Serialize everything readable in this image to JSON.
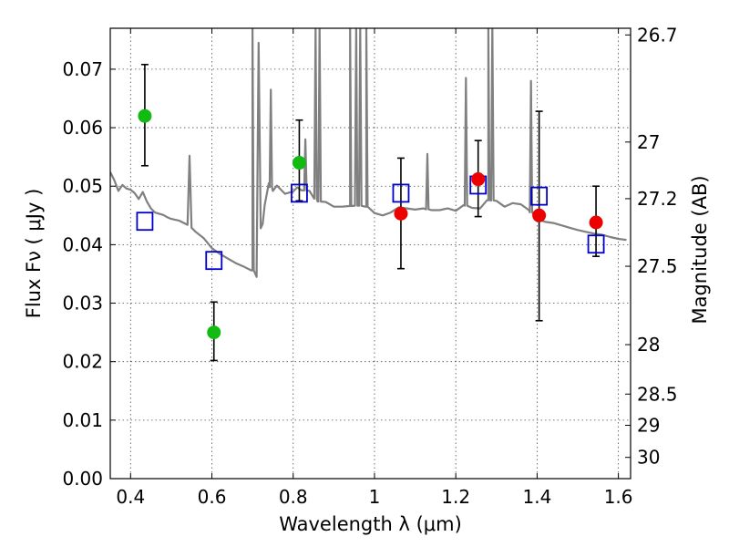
{
  "chart_data": {
    "type": "scatter",
    "title": "",
    "xlabel": "Wavelength  λ (μm)",
    "ylabel": "Flux  Fν  ( μJy )",
    "y2label": "Magnitude (AB)",
    "xlim": [
      0.35,
      1.63
    ],
    "ylim": [
      0.0,
      0.077
    ],
    "grid": true,
    "x_ticks": [
      0.4,
      0.6,
      0.8,
      1.0,
      1.2,
      1.4,
      1.6
    ],
    "x_tick_labels": [
      "0.4",
      "0.6",
      "0.8",
      "1",
      "1.2",
      "1.4",
      "1.6"
    ],
    "y_ticks": [
      0.0,
      0.01,
      0.02,
      0.03,
      0.04,
      0.05,
      0.06,
      0.07
    ],
    "y_tick_labels": [
      "0.00",
      "0.01",
      "0.02",
      "0.03",
      "0.04",
      "0.05",
      "0.06",
      "0.07"
    ],
    "y2_ticks": [
      26.7,
      27,
      27.2,
      27.5,
      28,
      28.5,
      29,
      30
    ],
    "y2_tick_labels": [
      "26.7",
      "27",
      "27.2",
      "27.5",
      "28",
      "28.5",
      "29",
      "30"
    ],
    "colors": {
      "green": "#11bb11",
      "red": "#ee0000",
      "square": "#0000cc",
      "model": "#808080",
      "errorbar": "#000000"
    },
    "series": [
      {
        "marker": "circle",
        "color": "#11bb11",
        "x": [
          0.435,
          0.605,
          0.815
        ],
        "y": [
          0.062,
          0.025,
          0.054
        ],
        "yerr_low": [
          0.0535,
          0.0202,
          0.0475
        ],
        "yerr_high": [
          0.0708,
          0.0302,
          0.0613
        ]
      },
      {
        "marker": "circle",
        "color": "#ee0000",
        "x": [
          1.065,
          1.255,
          1.405,
          1.545
        ],
        "y": [
          0.0453,
          0.0512,
          0.045,
          0.0438
        ],
        "yerr_low": [
          0.0359,
          0.0448,
          0.027,
          0.038
        ],
        "yerr_high": [
          0.0548,
          0.0578,
          0.0628,
          0.05
        ]
      },
      {
        "marker": "square",
        "color": "#0000cc",
        "x": [
          0.435,
          0.605,
          0.815,
          1.065,
          1.255,
          1.405,
          1.545
        ],
        "y": [
          0.044,
          0.0373,
          0.0488,
          0.0488,
          0.0502,
          0.0483,
          0.0401
        ]
      },
      {
        "marker": "line",
        "color": "#808080",
        "x": [
          0.35,
          0.36,
          0.37,
          0.38,
          0.39,
          0.4,
          0.41,
          0.42,
          0.43,
          0.44,
          0.45,
          0.46,
          0.47,
          0.48,
          0.49,
          0.5,
          0.52,
          0.54,
          0.545,
          0.55,
          0.56,
          0.58,
          0.6,
          0.62,
          0.64,
          0.66,
          0.68,
          0.7,
          0.71,
          0.715,
          0.72,
          0.725,
          0.73,
          0.74,
          0.75,
          0.76,
          0.78,
          0.8,
          0.81,
          0.82,
          0.84,
          0.86,
          0.88,
          0.9,
          0.92,
          0.94,
          0.96,
          0.98,
          1.0,
          1.02,
          1.04,
          1.06,
          1.08,
          1.1,
          1.12,
          1.14,
          1.16,
          1.18,
          1.2,
          1.22,
          1.24,
          1.26,
          1.28,
          1.3,
          1.32,
          1.34,
          1.36,
          1.38,
          1.4,
          1.42,
          1.44,
          1.46,
          1.48,
          1.5,
          1.52,
          1.54,
          1.56,
          1.58,
          1.6,
          1.62
        ],
        "y": [
          0.0524,
          0.051,
          0.0492,
          0.0502,
          0.0496,
          0.0494,
          0.0488,
          0.0478,
          0.049,
          0.0474,
          0.0462,
          0.0455,
          0.0453,
          0.0451,
          0.0447,
          0.0444,
          0.0441,
          0.0434,
          0.0552,
          0.0429,
          0.0422,
          0.0411,
          0.0394,
          0.0384,
          0.0376,
          0.0368,
          0.0362,
          0.0356,
          0.0345,
          0.0745,
          0.0428,
          0.0436,
          0.0468,
          0.0505,
          0.0492,
          0.0501,
          0.0487,
          0.0491,
          0.0498,
          0.0493,
          0.0492,
          0.0474,
          0.0473,
          0.0465,
          0.0465,
          0.0466,
          0.0467,
          0.0465,
          0.0454,
          0.045,
          0.0455,
          0.0464,
          0.0462,
          0.046,
          0.0462,
          0.0459,
          0.0459,
          0.0462,
          0.0458,
          0.0468,
          0.0463,
          0.0462,
          0.0476,
          0.0475,
          0.0465,
          0.0471,
          0.0469,
          0.0459,
          0.0444,
          0.0439,
          0.0437,
          0.0433,
          0.0429,
          0.0425,
          0.0422,
          0.0419,
          0.0417,
          0.0413,
          0.041,
          0.0408
        ]
      }
    ],
    "spikes": [
      {
        "x": 0.7,
        "top": 0.077
      },
      {
        "x": 0.745,
        "top": 0.0665
      },
      {
        "x": 0.83,
        "top": 0.058
      },
      {
        "x": 0.855,
        "top": 0.0775
      },
      {
        "x": 0.865,
        "top": 0.0775
      },
      {
        "x": 0.94,
        "top": 0.0775
      },
      {
        "x": 0.955,
        "top": 0.0775
      },
      {
        "x": 0.965,
        "top": 0.0775
      },
      {
        "x": 0.98,
        "top": 0.0775
      },
      {
        "x": 1.13,
        "top": 0.0555
      },
      {
        "x": 1.225,
        "top": 0.0685
      },
      {
        "x": 1.28,
        "top": 0.0775
      },
      {
        "x": 1.29,
        "top": 0.0775
      },
      {
        "x": 1.385,
        "top": 0.068
      }
    ]
  }
}
